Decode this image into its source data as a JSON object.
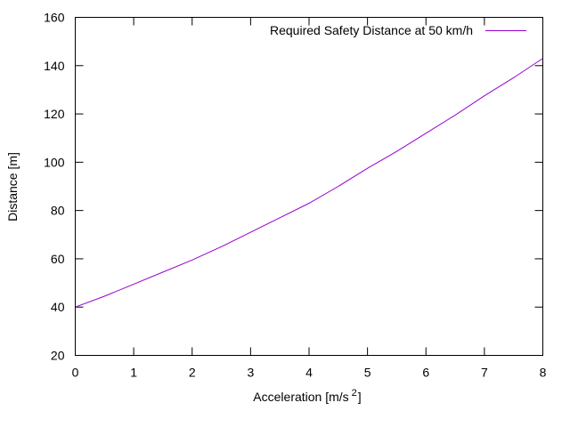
{
  "chart_data": {
    "type": "line",
    "title": "",
    "xlabel_main": "Acceleration [m/s",
    "xlabel_sup": "2",
    "xlabel_end": "]",
    "ylabel": "Distance [m]",
    "xlim": [
      0,
      8
    ],
    "ylim": [
      20,
      160
    ],
    "xticks": [
      "0",
      "1",
      "2",
      "3",
      "4",
      "5",
      "6",
      "7",
      "8"
    ],
    "yticks": [
      "20",
      "40",
      "60",
      "80",
      "100",
      "120",
      "140",
      "160"
    ],
    "grid": false,
    "legend_position": "top-right",
    "series": [
      {
        "name": "Required Safety Distance at 50 km/h",
        "color": "#9400d3",
        "x": [
          0,
          0.5,
          1,
          1.5,
          2,
          2.5,
          3,
          3.5,
          4,
          4.5,
          5,
          5.5,
          6,
          6.5,
          7,
          7.5,
          8
        ],
        "y": [
          40,
          44.5,
          49.5,
          54.5,
          59.5,
          65,
          71,
          77,
          83,
          90,
          97.5,
          104.5,
          112,
          119.5,
          127.5,
          135,
          143
        ]
      }
    ]
  }
}
